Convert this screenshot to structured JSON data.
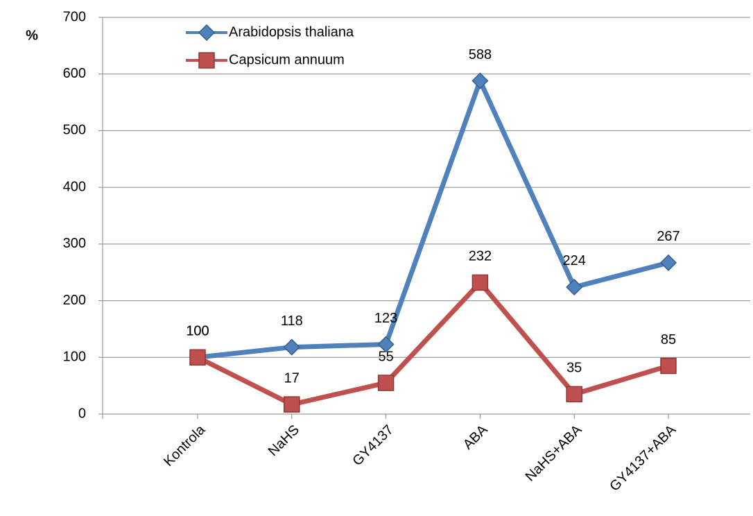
{
  "chart_data": {
    "type": "line",
    "y_label": "%",
    "categories": [
      "Kontrola",
      "NaHS",
      "GY4137",
      "ABA",
      "NaHS+ABA",
      "GY4137+ABA"
    ],
    "series": [
      {
        "name": "Arabidopsis thaliana",
        "color": "#4f81bd",
        "marker": "diamond",
        "values": [
          100,
          118,
          123,
          588,
          224,
          267
        ]
      },
      {
        "name": "Capsicum annuum",
        "color": "#c0504d",
        "marker": "square",
        "values": [
          100,
          17,
          55,
          232,
          35,
          85
        ]
      }
    ],
    "ylim": [
      0,
      700
    ],
    "yticks": [
      0,
      100,
      200,
      300,
      400,
      500,
      600,
      700
    ],
    "grid": true,
    "legend": "top-left"
  }
}
